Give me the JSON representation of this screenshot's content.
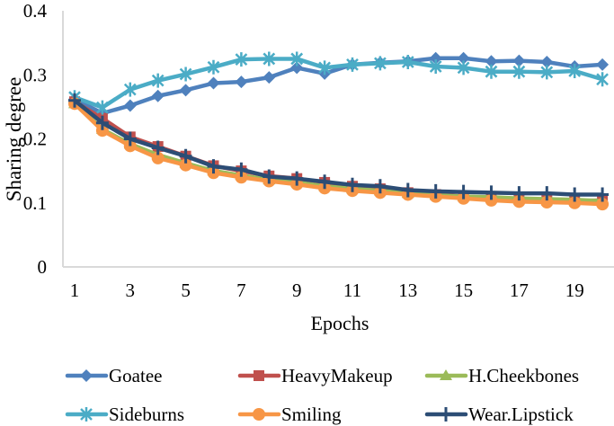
{
  "chart_data": {
    "type": "line",
    "xlabel": "Epochs",
    "ylabel": "Sharing degree",
    "ylim": [
      0,
      0.4
    ],
    "yticks": [
      "0",
      "0.1",
      "0.2",
      "0.3",
      "0.4"
    ],
    "xticks": [
      "1",
      "3",
      "5",
      "7",
      "9",
      "11",
      "13",
      "15",
      "17",
      "19"
    ],
    "grid": false,
    "legend_position": "bottom",
    "x": [
      1,
      2,
      3,
      4,
      5,
      6,
      7,
      8,
      9,
      10,
      11,
      12,
      13,
      14,
      15,
      16,
      17,
      18,
      19,
      20
    ],
    "series": [
      {
        "name": "Goatee",
        "color": "#4F81BD",
        "marker": "diamond",
        "values": [
          0.262,
          0.24,
          0.252,
          0.267,
          0.276,
          0.287,
          0.289,
          0.296,
          0.311,
          0.302,
          0.316,
          0.319,
          0.321,
          0.326,
          0.326,
          0.321,
          0.322,
          0.32,
          0.313,
          0.316
        ]
      },
      {
        "name": "HeavyMakeup",
        "color": "#C0504D",
        "marker": "square",
        "values": [
          0.258,
          0.232,
          0.203,
          0.188,
          0.173,
          0.158,
          0.15,
          0.142,
          0.138,
          0.132,
          0.126,
          0.122,
          0.116,
          0.113,
          0.11,
          0.108,
          0.106,
          0.104,
          0.103,
          0.104
        ]
      },
      {
        "name": "H.Cheekbones",
        "color": "#9BBB59",
        "marker": "triangle",
        "values": [
          0.255,
          0.215,
          0.192,
          0.175,
          0.162,
          0.15,
          0.143,
          0.136,
          0.132,
          0.126,
          0.122,
          0.119,
          0.115,
          0.112,
          0.11,
          0.109,
          0.107,
          0.106,
          0.105,
          0.103
        ]
      },
      {
        "name": "Sideburns",
        "color": "#4BACC6",
        "marker": "asterisk",
        "values": [
          0.265,
          0.249,
          0.277,
          0.291,
          0.301,
          0.312,
          0.324,
          0.325,
          0.325,
          0.311,
          0.316,
          0.318,
          0.32,
          0.313,
          0.311,
          0.305,
          0.305,
          0.304,
          0.306,
          0.293
        ]
      },
      {
        "name": "Smiling",
        "color": "#F79646",
        "marker": "circle",
        "values": [
          0.255,
          0.213,
          0.189,
          0.17,
          0.159,
          0.147,
          0.14,
          0.134,
          0.129,
          0.123,
          0.119,
          0.116,
          0.113,
          0.11,
          0.107,
          0.104,
          0.102,
          0.101,
          0.1,
          0.098
        ]
      },
      {
        "name": "Wear.Lipstick",
        "color": "#2C4D75",
        "marker": "plus",
        "values": [
          0.26,
          0.225,
          0.2,
          0.186,
          0.173,
          0.157,
          0.152,
          0.141,
          0.138,
          0.133,
          0.128,
          0.126,
          0.12,
          0.118,
          0.117,
          0.116,
          0.115,
          0.115,
          0.113,
          0.113
        ]
      }
    ]
  }
}
